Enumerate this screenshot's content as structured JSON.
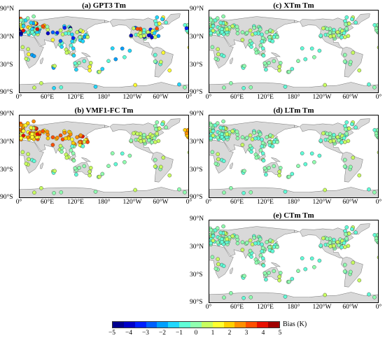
{
  "panels": [
    {
      "id": "a",
      "title": "(a) GPT3 Tm",
      "col": 0,
      "row": 0,
      "mode": "gpt3"
    },
    {
      "id": "c",
      "title": "(c) XTm Tm",
      "col": 1,
      "row": 0,
      "mode": "good"
    },
    {
      "id": "b",
      "title": "(b) VMF1-FC Tm",
      "col": 0,
      "row": 1,
      "mode": "vmf"
    },
    {
      "id": "d",
      "title": "(d) LTm Tm",
      "col": 1,
      "row": 1,
      "mode": "good"
    },
    {
      "id": "e",
      "title": "(e) CTm Tm",
      "col": 1,
      "row": 2,
      "mode": "good"
    }
  ],
  "lat_labels": [
    "90°N",
    "30°N",
    "30°S",
    "90°S"
  ],
  "lon_labels": [
    "0°",
    "60°E",
    "120°E",
    "180°",
    "120°W",
    "60°W",
    "0°"
  ],
  "colorbar": {
    "title": "Bias (K)",
    "ticks": [
      "−5",
      "−4",
      "−3",
      "−2",
      "−1",
      "0",
      "1",
      "2",
      "3",
      "4",
      "5"
    ],
    "range": [
      -5,
      5
    ],
    "colors": [
      "#00008f",
      "#0000c8",
      "#0020ff",
      "#0060ff",
      "#00a0ff",
      "#20d8ff",
      "#60ffd8",
      "#90ffb0",
      "#c8ff60",
      "#ffff30",
      "#ffd000",
      "#ff9000",
      "#ff5000",
      "#e81000",
      "#a00000"
    ]
  },
  "colors": {
    "land": "#d9d9d9",
    "coast": "#555555",
    "station_edge": "#333333"
  }
}
